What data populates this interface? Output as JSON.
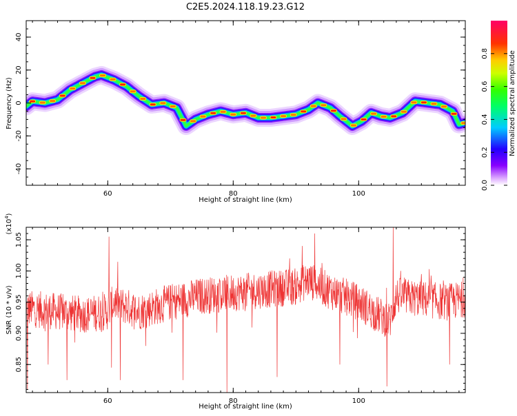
{
  "title": "C2E5.2024.118.19.23.G12",
  "colorbar": {
    "label": "Normalized spectral amplitude",
    "ticks": [
      "0.0",
      "0.2",
      "0.4",
      "0.6",
      "0.8"
    ],
    "tick_values": [
      0.0,
      0.2,
      0.4,
      0.6,
      0.8
    ],
    "range": [
      0,
      1
    ]
  },
  "chart_data": [
    {
      "type": "heatmap",
      "title": "",
      "xlabel": "Height of straight line (km)",
      "ylabel": "Frequency (Hz)",
      "xlim": [
        47,
        117
      ],
      "ylim": [
        -50,
        50
      ],
      "xticks": [
        "60",
        "80",
        "100"
      ],
      "xtick_values": [
        60,
        80,
        100
      ],
      "yticks": [
        "40",
        "20",
        "0",
        "-20",
        "-40"
      ],
      "ytick_values": [
        40,
        20,
        0,
        -20,
        -40
      ],
      "ridge": {
        "x": [
          47,
          48,
          50,
          52,
          54,
          56,
          58,
          59,
          61,
          63,
          65,
          67,
          69,
          71,
          72.5,
          74,
          76,
          78,
          80,
          82,
          84,
          86,
          88,
          90,
          92,
          93.5,
          95.5,
          97,
          99,
          100.5,
          102,
          103.5,
          105,
          107,
          109,
          111,
          113,
          115,
          116,
          117
        ],
        "y": [
          -2,
          1,
          0,
          2,
          8,
          12,
          16,
          17,
          14,
          10,
          4,
          -1,
          0,
          -3,
          -14,
          -10,
          -7,
          -5,
          -7,
          -6,
          -9,
          -9,
          -8,
          -7,
          -4,
          0,
          -3,
          -8,
          -14,
          -11,
          -6,
          -8,
          -9,
          -6,
          1,
          0,
          -1,
          -5,
          -13,
          -12
        ]
      },
      "colormap": "rainbow"
    },
    {
      "type": "line",
      "title": "",
      "xlabel": "Height of straight line (km)",
      "ylabel": "SNR (10 * v/v)",
      "y_multiplier": "(x10",
      "y_multiplier_exp": "4",
      "y_multiplier_close": ")",
      "xlim": [
        47,
        117
      ],
      "ylim": [
        0.805,
        1.07
      ],
      "xticks": [
        "60",
        "80",
        "100"
      ],
      "xtick_values": [
        60,
        80,
        100
      ],
      "yticks": [
        "0.85",
        "0.90",
        "0.95",
        "1.00",
        "1.05"
      ],
      "ytick_values": [
        0.85,
        0.9,
        0.95,
        1.0,
        1.05
      ],
      "series_color": "#ee3333",
      "baseline": {
        "x": [
          47,
          52,
          56,
          60,
          61,
          65,
          70,
          75,
          80,
          85,
          90,
          92,
          95,
          100,
          103,
          105,
          106,
          110,
          114,
          117
        ],
        "y": [
          0.94,
          0.935,
          0.93,
          0.935,
          0.95,
          0.935,
          0.95,
          0.96,
          0.965,
          0.97,
          0.975,
          0.985,
          0.97,
          0.95,
          0.93,
          0.92,
          0.96,
          0.955,
          0.95,
          0.955
        ]
      },
      "spikes": [
        {
          "x": 47.2,
          "y": 0.81
        },
        {
          "x": 50.5,
          "y": 0.85
        },
        {
          "x": 53.5,
          "y": 0.825
        },
        {
          "x": 60.2,
          "y": 1.055
        },
        {
          "x": 60.6,
          "y": 0.845
        },
        {
          "x": 62.0,
          "y": 0.825
        },
        {
          "x": 72.0,
          "y": 0.825
        },
        {
          "x": 79.0,
          "y": 0.805
        },
        {
          "x": 82.5,
          "y": 0.99
        },
        {
          "x": 87.0,
          "y": 0.83
        },
        {
          "x": 89.0,
          "y": 1.02
        },
        {
          "x": 91.0,
          "y": 1.04
        },
        {
          "x": 93.0,
          "y": 1.06
        },
        {
          "x": 97.0,
          "y": 0.85
        },
        {
          "x": 104.5,
          "y": 0.815
        },
        {
          "x": 105.5,
          "y": 1.07
        },
        {
          "x": 110.0,
          "y": 0.995
        },
        {
          "x": 114.5,
          "y": 0.85
        }
      ]
    }
  ]
}
